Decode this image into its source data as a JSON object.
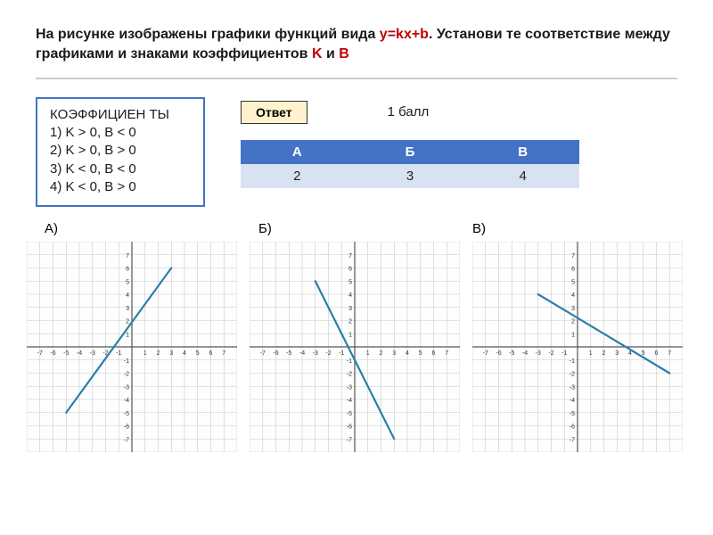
{
  "header": {
    "text_before": "На рисунке изображены графики функций вида ",
    "formula": "у=kx+b",
    "text_after1": ". Установи те соответствие между графиками и знаками коэффициентов ",
    "k_label": "K",
    "and": " и ",
    "b_label": "B"
  },
  "coefficients": {
    "title": "КОЭФФИЦИЕН ТЫ",
    "lines": [
      "1) K > 0, B < 0",
      "2) K > 0, B > 0",
      "3) K < 0, B < 0",
      "4) K < 0, B > 0"
    ],
    "border_color": "#4472c4"
  },
  "answer_button": {
    "label": "Ответ",
    "bg": "#fff2cc"
  },
  "score": "1 балл",
  "answer_table": {
    "headers": [
      "А",
      "Б",
      "В"
    ],
    "values": [
      "2",
      "3",
      "4"
    ],
    "header_bg": "#4472c4",
    "header_color": "#ffffff",
    "value_bg": "#d9e2f3"
  },
  "chart_labels": [
    "А)",
    "Б)",
    "В)"
  ],
  "chart_style": {
    "size": 236,
    "cells": 16,
    "axis_range": [
      -8,
      8
    ],
    "tick_labels": [
      "-7",
      "-6",
      "-5",
      "-4",
      "-3",
      "-2",
      "-1",
      "",
      "1",
      "2",
      "3",
      "4",
      "5",
      "6",
      "7"
    ],
    "tick_fontsize": 7,
    "grid_color": "#c8c8c8",
    "axis_color": "#555555",
    "line_color": "#2a7faa",
    "line_width": 2.2,
    "background": "#fefefe"
  },
  "charts": [
    {
      "p1": [
        -5,
        -5
      ],
      "p2": [
        3,
        6
      ]
    },
    {
      "p1": [
        -3,
        5
      ],
      "p2": [
        3,
        -7
      ]
    },
    {
      "p1": [
        -3,
        4
      ],
      "p2": [
        7,
        -2
      ]
    }
  ]
}
